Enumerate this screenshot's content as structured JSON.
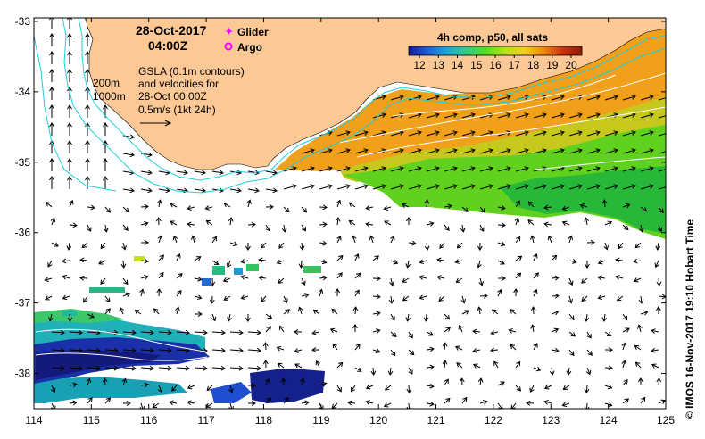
{
  "header": {
    "date": "28-Oct-2017",
    "time": "04:00Z"
  },
  "legend": {
    "glider_label": "Glider",
    "argo_label": "Argo",
    "glider_color": "#ff00ff",
    "argo_color": "#ff00ff"
  },
  "contours": {
    "label_200": "200m",
    "label_1000": "1000m",
    "color": "#22ccdd"
  },
  "description": {
    "line1": "GSLA (0.1m contours)",
    "line2": "and velocities for",
    "line3": "28-Oct 00:00Z",
    "line4": "0.5m/s (1kt 24h)"
  },
  "colorbar": {
    "title": "4h comp, p50, all sats",
    "ticks": [
      "12",
      "13",
      "14",
      "15",
      "16",
      "17",
      "18",
      "19",
      "20"
    ],
    "min": 12,
    "max": 20,
    "colors": [
      "#1a1a9a",
      "#1f5fd6",
      "#1fa8d8",
      "#33cc88",
      "#55dd22",
      "#b8e11a",
      "#f2d21a",
      "#ee8811",
      "#cc3311",
      "#8b1a0a"
    ]
  },
  "axes": {
    "x_ticks": [
      "114",
      "115",
      "116",
      "117",
      "118",
      "119",
      "120",
      "121",
      "122",
      "123",
      "124",
      "125"
    ],
    "y_ticks": [
      "-33",
      "-34",
      "-35",
      "-36",
      "-37",
      "-38"
    ],
    "lon_range": [
      114,
      125
    ],
    "lat_range": [
      -32.95,
      -38.5
    ]
  },
  "colors": {
    "land": "#fcc896",
    "ocean": "#ffffff"
  },
  "credit": "© IMOS 16-Nov-2017 19:10 Hobart Time"
}
